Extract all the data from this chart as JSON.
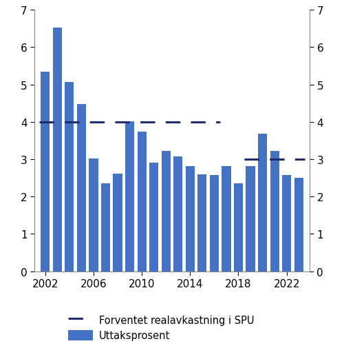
{
  "years": [
    2002,
    2003,
    2004,
    2005,
    2006,
    2007,
    2008,
    2009,
    2010,
    2011,
    2012,
    2013,
    2014,
    2015,
    2016,
    2017,
    2018,
    2019,
    2020,
    2021,
    2022,
    2023
  ],
  "bar_values": [
    5.35,
    6.52,
    5.06,
    4.48,
    3.02,
    2.35,
    2.62,
    4.02,
    3.73,
    2.9,
    3.23,
    3.07,
    2.81,
    2.59,
    2.57,
    2.81,
    2.36,
    2.82,
    3.69,
    3.22,
    2.57,
    2.5
  ],
  "bar_color": "#4472C4",
  "dashed_segments": [
    {
      "x_start": 2001.5,
      "x_end": 2016.5,
      "y": 4.0
    },
    {
      "x_start": 2018.5,
      "x_end": 2023.5,
      "y": 3.0
    }
  ],
  "dashed_color": "#1F2D6E",
  "dashed_linewidth": 2.2,
  "ylim": [
    0,
    7
  ],
  "yticks": [
    0,
    1,
    2,
    3,
    4,
    5,
    6,
    7
  ],
  "xticks": [
    2002,
    2006,
    2010,
    2014,
    2018,
    2022
  ],
  "xlim_left": 2001.1,
  "xlim_right": 2023.9,
  "legend_label_dashed": "Forventet realavkastning i SPU",
  "legend_label_bar": "Uttaksprosent",
  "background_color": "#ffffff",
  "bar_width": 0.75,
  "tick_fontsize": 11,
  "legend_fontsize": 10.5
}
